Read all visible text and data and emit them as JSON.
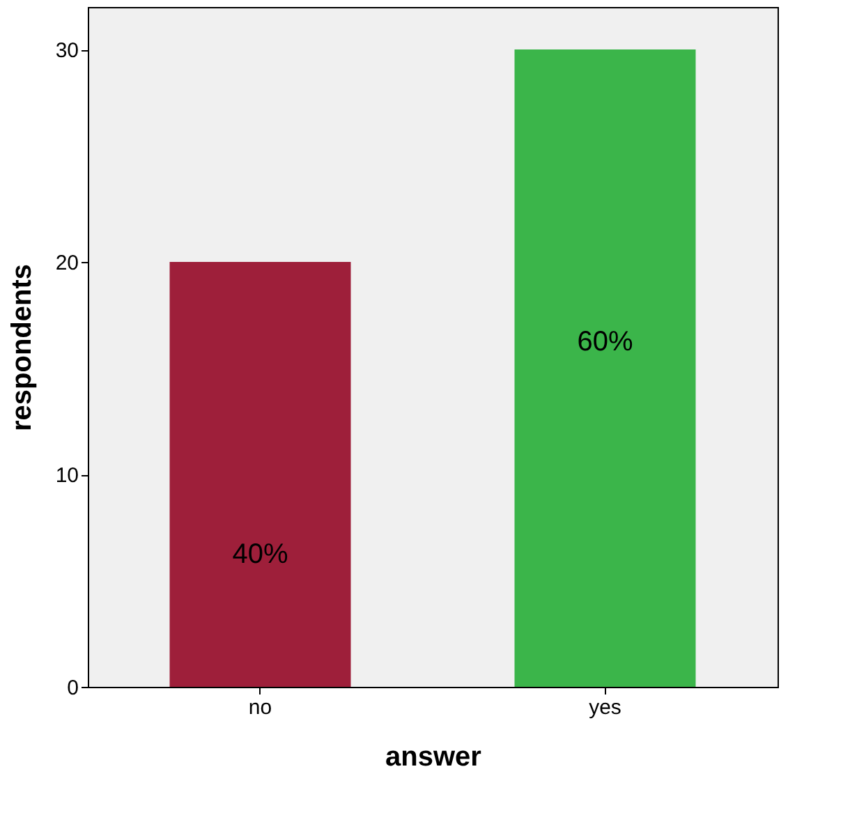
{
  "chart_data": {
    "type": "bar",
    "xlabel": "answer",
    "ylabel": "respondents",
    "categories": [
      "no",
      "yes"
    ],
    "values": [
      20,
      30
    ],
    "colors": [
      "#9e1f3a",
      "#3bb54a"
    ],
    "annotations": [
      "40%",
      "60%"
    ],
    "ylim": [
      0,
      32
    ],
    "yticks": [
      0,
      10,
      20,
      30
    ],
    "grid": false
  }
}
